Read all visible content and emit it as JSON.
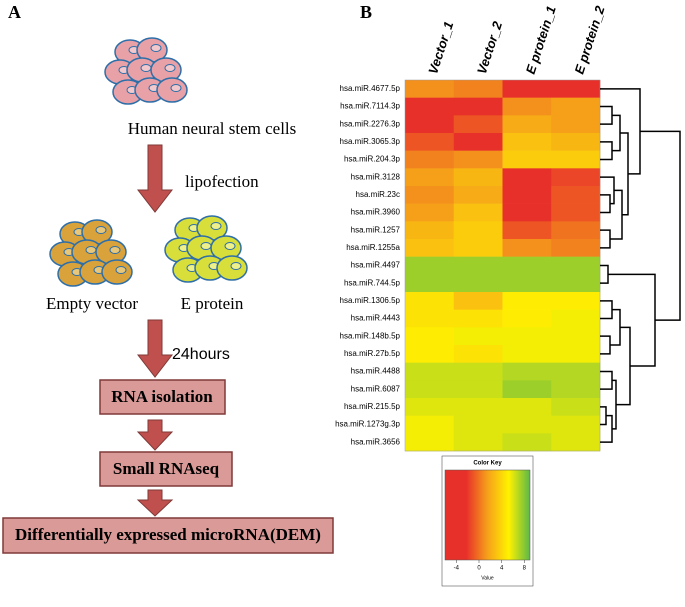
{
  "panel_a": {
    "label": "A",
    "source": "Human neural stem cells",
    "step1": "lipofection",
    "group_1": "Empty vector",
    "group_2": "E protein",
    "step2": "24hours",
    "boxes": [
      "RNA isolation",
      "Small RNAseq",
      "Differentially expressed microRNA(DEM)"
    ]
  },
  "chart_data": {
    "type": "heatmap",
    "label": "B",
    "columns": [
      "Vector_1",
      "Vector_2",
      "E protein_1",
      "E protein_2"
    ],
    "rows": [
      "hsa.miR.4677.5p",
      "hsa.miR.7114.3p",
      "hsa.miR.2276.3p",
      "hsa.miR.3065.3p",
      "hsa.miR.204.3p",
      "hsa.miR.3128",
      "hsa.miR.23c",
      "hsa.miR.3960",
      "hsa.miR.1257",
      "hsa.miR.1255a",
      "hsa.miR.4497",
      "hsa.miR.744.5p",
      "hsa.miR.1306.5p",
      "hsa.miR.4443",
      "hsa.miR.148b.5p",
      "hsa.miR.27b.5p",
      "hsa.miR.4488",
      "hsa.miR.6087",
      "hsa.miR.215.5p",
      "hsa.miR.1273g.3p",
      "hsa.miR.3656"
    ],
    "values": [
      [
        1,
        0.5,
        -4,
        -4
      ],
      [
        -3.5,
        -2.5,
        1,
        1.5
      ],
      [
        -2.5,
        -1,
        2,
        1.5
      ],
      [
        -1,
        -3,
        3,
        2.5
      ],
      [
        0.5,
        1,
        3.5,
        3.5
      ],
      [
        1.5,
        2.5,
        -2.5,
        -1.5
      ],
      [
        1,
        2,
        -3,
        -1
      ],
      [
        1.5,
        3,
        -3.5,
        -1
      ],
      [
        2.5,
        3.5,
        -1,
        0
      ],
      [
        3,
        3.5,
        1,
        0.5
      ],
      [
        7.5,
        7.5,
        7.5,
        7.5
      ],
      [
        7.5,
        7.5,
        7.5,
        7.5
      ],
      [
        4.5,
        3,
        5,
        5
      ],
      [
        4.5,
        4.5,
        5,
        5.5
      ],
      [
        5,
        5.5,
        5.5,
        5.5
      ],
      [
        5,
        4.5,
        5.5,
        5.5
      ],
      [
        6.5,
        6.5,
        7,
        7
      ],
      [
        6.5,
        6.5,
        7.5,
        7
      ],
      [
        6,
        6,
        6,
        6.5
      ],
      [
        5.5,
        6,
        6,
        6
      ],
      [
        5.5,
        6,
        6.5,
        6
      ]
    ],
    "clim": [
      -6,
      9
    ],
    "colormap": [
      "#e8302a",
      "#e8302a",
      "#f6a01a",
      "#fff200",
      "#5cb848"
    ],
    "colorbar": {
      "title": "Color Key",
      "xlabel": "Value",
      "ticks": [
        -4,
        0,
        4,
        8
      ]
    }
  }
}
